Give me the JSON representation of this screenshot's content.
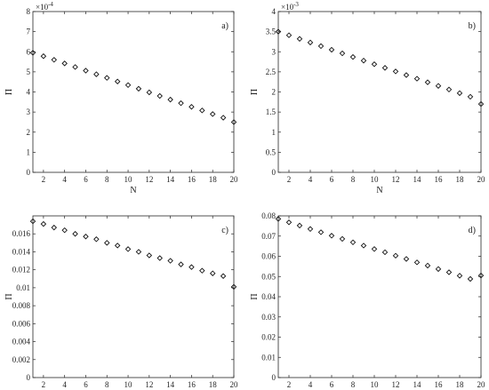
{
  "chart_data": [
    {
      "type": "scatter",
      "panel_label": "a)",
      "xlabel": "N",
      "ylabel": "Π",
      "exponent_label": "×10",
      "exponent_power": "-4",
      "x": [
        1,
        2,
        3,
        4,
        5,
        6,
        7,
        8,
        9,
        10,
        11,
        12,
        13,
        14,
        15,
        16,
        17,
        18,
        19,
        20
      ],
      "y": [
        5.95,
        5.78,
        5.6,
        5.42,
        5.24,
        5.06,
        4.88,
        4.7,
        4.52,
        4.34,
        4.16,
        3.98,
        3.8,
        3.62,
        3.44,
        3.26,
        3.08,
        2.9,
        2.72,
        2.5
      ],
      "xlim": [
        1,
        20
      ],
      "ylim": [
        0,
        8
      ],
      "xticks": [
        2,
        4,
        6,
        8,
        10,
        12,
        14,
        16,
        18,
        20
      ],
      "yticks": [
        0,
        1,
        2,
        3,
        4,
        5,
        6,
        7,
        8
      ],
      "ytick_labels": [
        "0",
        "1",
        "2",
        "3",
        "4",
        "5",
        "6",
        "7",
        "8"
      ],
      "marker": "diamond-open"
    },
    {
      "type": "scatter",
      "panel_label": "b)",
      "xlabel": "N",
      "ylabel": "Π",
      "exponent_label": "×10",
      "exponent_power": "-3",
      "x": [
        1,
        2,
        3,
        4,
        5,
        6,
        7,
        8,
        9,
        10,
        11,
        12,
        13,
        14,
        15,
        16,
        17,
        18,
        19,
        20
      ],
      "y": [
        3.5,
        3.41,
        3.32,
        3.23,
        3.14,
        3.05,
        2.96,
        2.87,
        2.78,
        2.69,
        2.6,
        2.51,
        2.42,
        2.33,
        2.24,
        2.15,
        2.06,
        1.97,
        1.88,
        1.7
      ],
      "xlim": [
        1,
        20
      ],
      "ylim": [
        0,
        4
      ],
      "xticks": [
        2,
        4,
        6,
        8,
        10,
        12,
        14,
        16,
        18,
        20
      ],
      "yticks": [
        0,
        0.5,
        1,
        1.5,
        2,
        2.5,
        3,
        3.5,
        4
      ],
      "ytick_labels": [
        "0",
        "0.5",
        "1",
        "1.5",
        "2",
        "2.5",
        "3",
        "3.5",
        "4"
      ],
      "marker": "diamond-open"
    },
    {
      "type": "scatter",
      "panel_label": "c)",
      "xlabel": "N",
      "ylabel": "Π",
      "x": [
        1,
        2,
        3,
        4,
        5,
        6,
        7,
        8,
        9,
        10,
        11,
        12,
        13,
        14,
        15,
        16,
        17,
        18,
        19,
        20
      ],
      "y": [
        0.0174,
        0.0171,
        0.0167,
        0.0164,
        0.016,
        0.0157,
        0.0154,
        0.015,
        0.0147,
        0.0143,
        0.014,
        0.0136,
        0.0133,
        0.013,
        0.0126,
        0.0123,
        0.0119,
        0.0116,
        0.0113,
        0.0101
      ],
      "xlim": [
        1,
        20
      ],
      "ylim": [
        0,
        0.018
      ],
      "xticks": [
        2,
        4,
        6,
        8,
        10,
        12,
        14,
        16,
        18,
        20
      ],
      "yticks": [
        0,
        0.002,
        0.004,
        0.006,
        0.008,
        0.01,
        0.012,
        0.014,
        0.016
      ],
      "ytick_labels": [
        "0",
        "0.002",
        "0.004",
        "0.006",
        "0.008",
        "0.01",
        "0.012",
        "0.014",
        "0.016"
      ],
      "marker": "diamond-open"
    },
    {
      "type": "scatter",
      "panel_label": "d)",
      "xlabel": "N",
      "ylabel": "Π",
      "x": [
        1,
        2,
        3,
        4,
        5,
        6,
        7,
        8,
        9,
        10,
        11,
        12,
        13,
        14,
        15,
        16,
        17,
        18,
        19,
        20
      ],
      "y": [
        0.0785,
        0.0768,
        0.0752,
        0.0735,
        0.0719,
        0.0702,
        0.0686,
        0.0669,
        0.0653,
        0.0636,
        0.062,
        0.0603,
        0.0587,
        0.057,
        0.0554,
        0.0537,
        0.0521,
        0.0504,
        0.0488,
        0.0505
      ],
      "xlim": [
        1,
        20
      ],
      "ylim": [
        0,
        0.08
      ],
      "xticks": [
        2,
        4,
        6,
        8,
        10,
        12,
        14,
        16,
        18,
        20
      ],
      "yticks": [
        0,
        0.01,
        0.02,
        0.03,
        0.04,
        0.05,
        0.06,
        0.07,
        0.08
      ],
      "ytick_labels": [
        "0",
        "0.01",
        "0.02",
        "0.03",
        "0.04",
        "0.05",
        "0.06",
        "0.07",
        "0.08"
      ],
      "marker": "diamond-open"
    }
  ]
}
